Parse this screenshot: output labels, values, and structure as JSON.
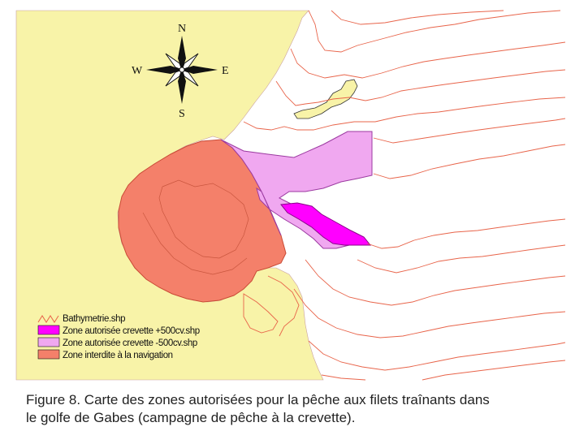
{
  "compass": {
    "north": "N",
    "south": "S",
    "east": "E",
    "west": "W"
  },
  "legend": [
    {
      "label": "Bathymetrie.shp",
      "symbol": "bathymetry-line",
      "color": "#e8644a"
    },
    {
      "label": "Zone autorisée crevette +500cv.shp",
      "symbol": "box",
      "color": "#ff00ff"
    },
    {
      "label": "Zone autorisée crevette -500cv.shp",
      "symbol": "box",
      "color": "#f0a8f0"
    },
    {
      "label": "Zone interdite à la navigation",
      "symbol": "box",
      "color": "#f4806a"
    }
  ],
  "colors": {
    "land": "#f8f3a8",
    "sea": "#ffffff",
    "bathymetry": "#e8644a",
    "zone_plus_500": "#ff00ff",
    "zone_minus_500": "#f0a8f0",
    "zone_forbidden": "#f4806a"
  },
  "caption": {
    "line1": "Figure 8. Carte des zones autorisées pour la pêche aux filets traînants dans",
    "line2": "le golfe de Gabes (campagne de pêche à la crevette)."
  }
}
